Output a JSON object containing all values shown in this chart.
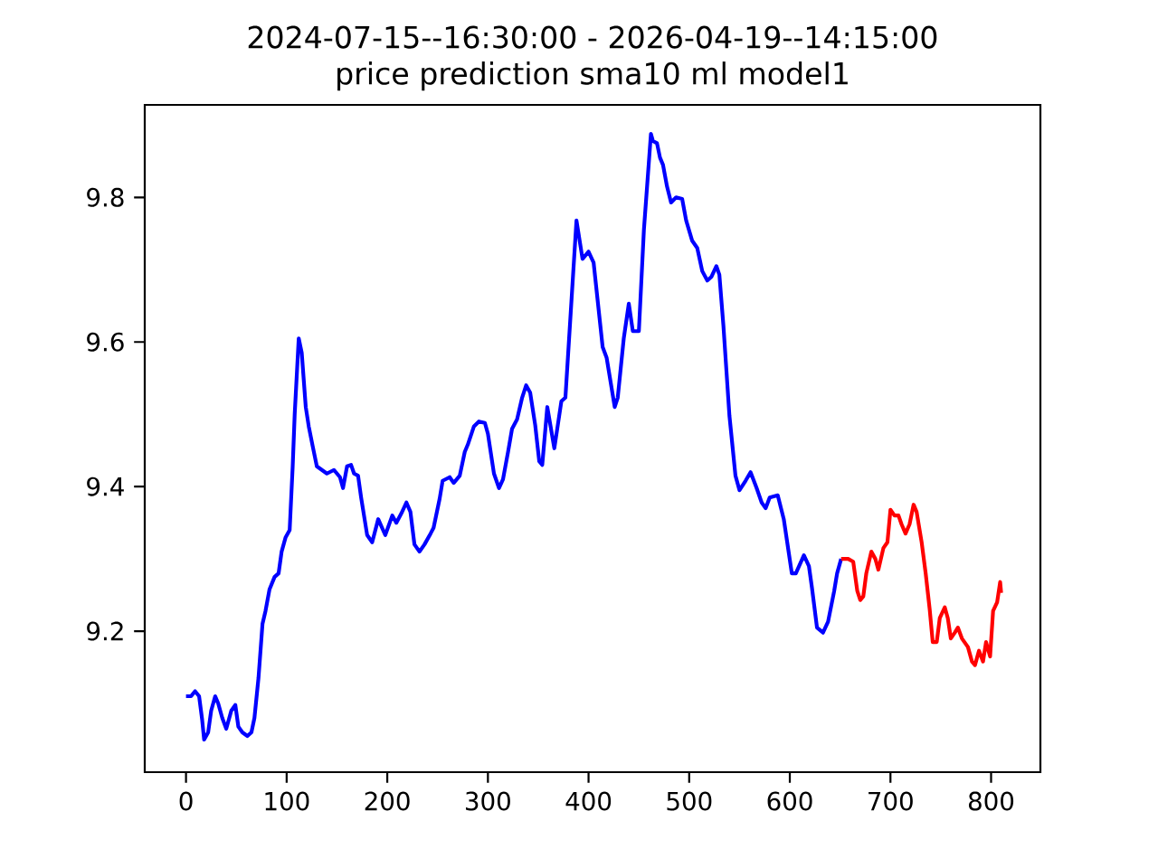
{
  "chart_data": {
    "type": "line",
    "title": "2024-07-15--16:30:00 - 2026-04-19--14:15:00",
    "subtitle": "price prediction sma10 ml model1",
    "xlim": [
      -41,
      849
    ],
    "ylim": [
      9.005,
      9.928
    ],
    "xticks": [
      0,
      100,
      200,
      300,
      400,
      500,
      600,
      700,
      800
    ],
    "yticks": [
      9.2,
      9.4,
      9.6,
      9.8
    ],
    "marker": "none",
    "line_style": "solid",
    "grid": false,
    "series": [
      {
        "color": "#0000ff",
        "x": [
          0,
          5,
          9,
          13,
          16,
          18,
          22,
          25,
          29,
          32,
          36,
          40,
          45,
          49,
          52,
          56,
          61,
          65,
          68,
          72,
          76,
          79,
          83,
          88,
          92,
          95,
          99,
          103,
          106,
          108,
          112,
          115,
          119,
          122,
          126,
          130,
          135,
          140,
          147,
          153,
          156,
          160,
          164,
          167,
          171,
          174,
          180,
          185,
          191,
          198,
          205,
          209,
          214,
          219,
          223,
          227,
          232,
          237,
          243,
          246,
          252,
          255,
          262,
          266,
          272,
          277,
          280,
          286,
          291,
          297,
          300,
          306,
          311,
          315,
          320,
          324,
          329,
          334,
          338,
          342,
          347,
          351,
          354,
          359,
          366,
          373,
          377,
          388,
          394,
          400,
          405,
          414,
          418,
          426,
          429,
          435,
          440,
          444,
          450,
          455,
          462,
          464,
          468,
          471,
          474,
          478,
          482,
          487,
          493,
          497,
          503,
          508,
          513,
          518,
          522,
          527,
          530,
          534,
          540,
          546,
          550,
          556,
          561,
          567,
          572,
          576,
          580,
          588,
          594,
          602,
          606,
          614,
          619,
          622,
          627,
          633,
          638,
          644,
          647,
          651
        ],
        "values": [
          9.11,
          9.11,
          9.117,
          9.11,
          9.078,
          9.05,
          9.06,
          9.09,
          9.11,
          9.1,
          9.08,
          9.065,
          9.09,
          9.098,
          9.068,
          9.06,
          9.055,
          9.06,
          9.08,
          9.135,
          9.21,
          9.228,
          9.258,
          9.275,
          9.28,
          9.31,
          9.33,
          9.34,
          9.428,
          9.5,
          9.605,
          9.585,
          9.51,
          9.483,
          9.455,
          9.428,
          9.423,
          9.418,
          9.423,
          9.413,
          9.398,
          9.428,
          9.43,
          9.418,
          9.415,
          9.385,
          9.333,
          9.323,
          9.355,
          9.333,
          9.36,
          9.35,
          9.363,
          9.378,
          9.365,
          9.32,
          9.31,
          9.32,
          9.335,
          9.343,
          9.383,
          9.408,
          9.413,
          9.405,
          9.415,
          9.448,
          9.458,
          9.483,
          9.49,
          9.488,
          9.473,
          9.418,
          9.398,
          9.41,
          9.448,
          9.48,
          9.493,
          9.523,
          9.54,
          9.53,
          9.485,
          9.435,
          9.43,
          9.51,
          9.453,
          9.518,
          9.523,
          9.768,
          9.715,
          9.725,
          9.71,
          9.593,
          9.578,
          9.51,
          9.523,
          9.605,
          9.653,
          9.615,
          9.615,
          9.755,
          9.888,
          9.878,
          9.875,
          9.855,
          9.845,
          9.815,
          9.793,
          9.8,
          9.798,
          9.768,
          9.74,
          9.73,
          9.698,
          9.685,
          9.69,
          9.705,
          9.693,
          9.623,
          9.498,
          9.415,
          9.395,
          9.408,
          9.42,
          9.398,
          9.378,
          9.37,
          9.385,
          9.388,
          9.355,
          9.28,
          9.28,
          9.305,
          9.29,
          9.26,
          9.205,
          9.198,
          9.213,
          9.255,
          9.28,
          9.3
        ]
      },
      {
        "color": "#ff0000",
        "x": [
          651,
          658,
          663,
          667,
          670,
          673,
          676,
          681,
          685,
          688,
          693,
          697,
          700,
          704,
          708,
          711,
          715,
          719,
          723,
          726,
          731,
          735,
          739,
          742,
          746,
          749,
          754,
          757,
          760,
          764,
          767,
          771,
          777,
          781,
          784,
          788,
          792,
          795,
          799,
          802,
          806,
          809,
          810
        ],
        "values": [
          9.3,
          9.3,
          9.296,
          9.256,
          9.243,
          9.248,
          9.28,
          9.31,
          9.3,
          9.285,
          9.315,
          9.323,
          9.368,
          9.36,
          9.36,
          9.348,
          9.335,
          9.348,
          9.375,
          9.365,
          9.323,
          9.28,
          9.23,
          9.185,
          9.185,
          9.218,
          9.233,
          9.218,
          9.19,
          9.198,
          9.205,
          9.19,
          9.178,
          9.158,
          9.153,
          9.173,
          9.158,
          9.185,
          9.165,
          9.228,
          9.24,
          9.268,
          9.253
        ]
      }
    ]
  }
}
